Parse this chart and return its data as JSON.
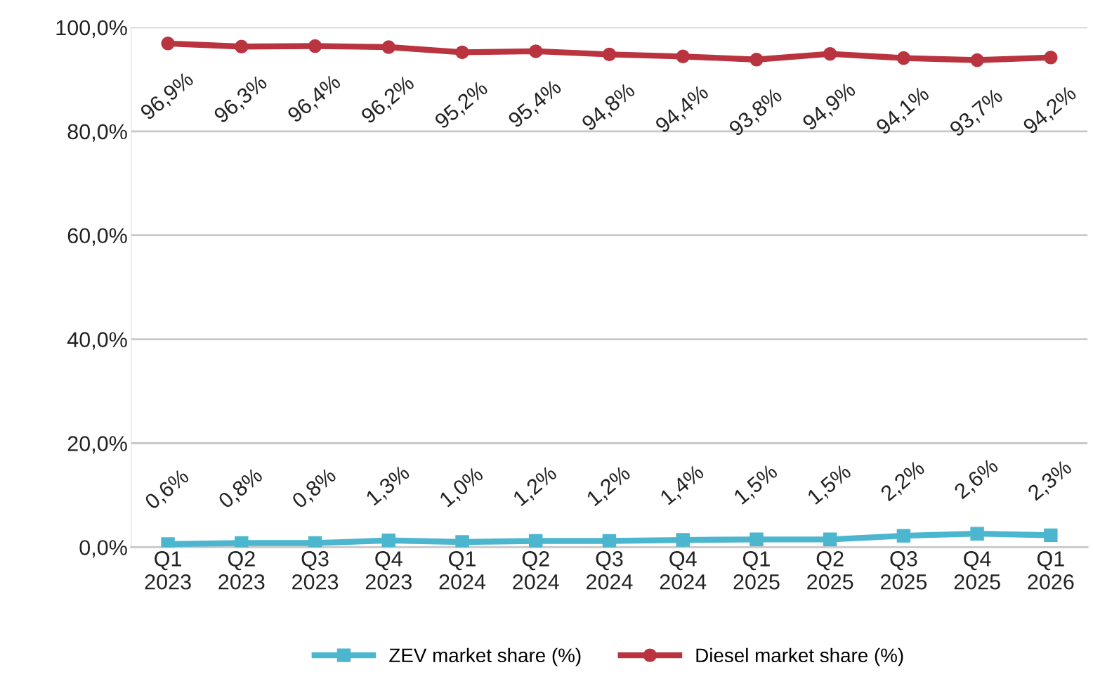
{
  "chart_data": {
    "type": "line",
    "categories": [
      "Q1\n2023",
      "Q2\n2023",
      "Q3\n2023",
      "Q4\n2023",
      "Q1\n2024",
      "Q2\n2024",
      "Q3\n2024",
      "Q4\n2024",
      "Q1\n2025",
      "Q2\n2025",
      "Q3\n2025",
      "Q4\n2025",
      "Q1\n2026"
    ],
    "series": [
      {
        "name": "ZEV market share (%)",
        "color": "#4cb6cf",
        "marker": "square",
        "values": [
          0.6,
          0.8,
          0.8,
          1.3,
          1.0,
          1.2,
          1.2,
          1.4,
          1.5,
          1.5,
          2.2,
          2.6,
          2.3
        ],
        "value_labels": [
          "0,6%",
          "0,8%",
          "0,8%",
          "1,3%",
          "1,0%",
          "1,2%",
          "1,2%",
          "1,4%",
          "1,5%",
          "1,5%",
          "2,2%",
          "2,6%",
          "2,3%"
        ]
      },
      {
        "name": "Diesel market share (%)",
        "color": "#b9343f",
        "marker": "circle",
        "values": [
          96.9,
          96.3,
          96.4,
          96.2,
          95.2,
          95.4,
          94.8,
          94.4,
          93.8,
          94.9,
          94.1,
          93.7,
          94.2
        ],
        "value_labels": [
          "96,9%",
          "96,3%",
          "96,4%",
          "96,2%",
          "95,2%",
          "95,4%",
          "94,8%",
          "94,4%",
          "93,8%",
          "94,9%",
          "94,1%",
          "93,7%",
          "94,2%"
        ]
      }
    ],
    "ylim": [
      0,
      100
    ],
    "yticks": [
      {
        "value": 0,
        "label": "0,0%"
      },
      {
        "value": 20,
        "label": "20,0%"
      },
      {
        "value": 40,
        "label": "40,0%"
      },
      {
        "value": 60,
        "label": "60,0%"
      },
      {
        "value": 80,
        "label": "80,0%"
      },
      {
        "value": 100,
        "label": "100,0%"
      }
    ],
    "grid": "y",
    "legend": "bottom",
    "line_style": "solid"
  }
}
